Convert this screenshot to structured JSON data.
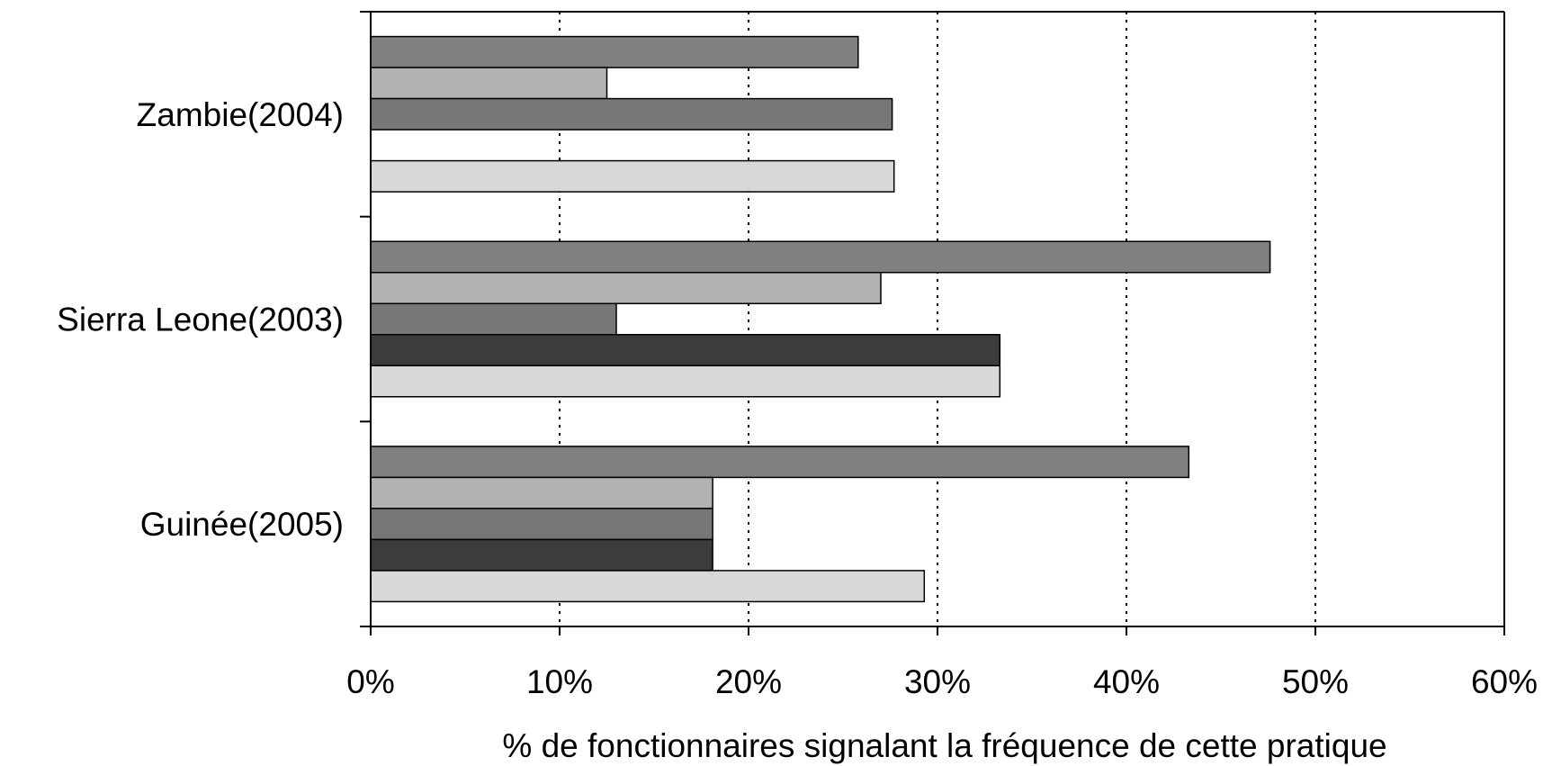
{
  "chart_data": {
    "type": "bar",
    "orientation": "horizontal",
    "categories": [
      "Zambie(2004)",
      "Sierra Leone(2003)",
      "Guinée(2005)"
    ],
    "series": [
      {
        "color": "#808080",
        "values": [
          25.8,
          47.6,
          43.3
        ]
      },
      {
        "color": "#b2b2b2",
        "values": [
          12.5,
          27.0,
          18.1
        ]
      },
      {
        "color": "#777777",
        "values": [
          27.6,
          13.0,
          18.1
        ]
      },
      {
        "color": "#3c3c3c",
        "values": [
          null,
          33.3,
          18.1
        ]
      },
      {
        "color": "#d8d8d8",
        "values": [
          27.7,
          33.3,
          29.3
        ]
      }
    ],
    "xlim": [
      0,
      60
    ],
    "xticks": [
      0,
      10,
      20,
      30,
      40,
      50,
      60
    ],
    "xtick_labels": [
      "0%",
      "10%",
      "20%",
      "30%",
      "40%",
      "50%",
      "60%"
    ],
    "xlabel": "% de fonctionnaires signalant la fréquence de cette pratique",
    "ylabel": "",
    "title": "",
    "grid": {
      "x": true,
      "style": "dotted"
    },
    "legend": "none"
  }
}
